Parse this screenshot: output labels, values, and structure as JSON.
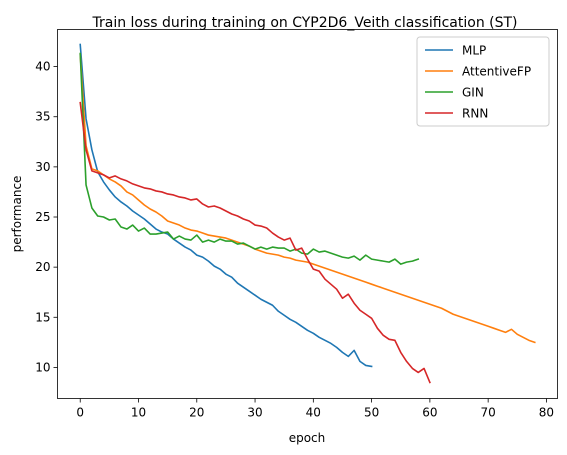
{
  "chart_data": {
    "type": "line",
    "title": "Train loss during training on CYP2D6_Veith classification (ST)",
    "xlabel": "epoch",
    "ylabel": "performance",
    "xlim": [
      -3.9,
      81.9
    ],
    "ylim": [
      6.9,
      43.7
    ],
    "xticks": [
      0,
      10,
      20,
      30,
      40,
      50,
      60,
      70,
      80
    ],
    "yticks": [
      10,
      15,
      20,
      25,
      30,
      35,
      40
    ],
    "grid": false,
    "legend": "top-right",
    "series": [
      {
        "name": "MLP",
        "color": "#1f77b4",
        "values": [
          42.2,
          34.8,
          31.7,
          29.5,
          28.5,
          27.7,
          27.0,
          26.5,
          26.1,
          25.6,
          25.2,
          24.8,
          24.3,
          23.8,
          23.5,
          23.3,
          22.8,
          22.4,
          22.0,
          21.7,
          21.2,
          21.0,
          20.6,
          20.1,
          19.8,
          19.3,
          19.0,
          18.4,
          18.0,
          17.6,
          17.2,
          16.8,
          16.5,
          16.2,
          15.6,
          15.2,
          14.8,
          14.5,
          14.1,
          13.7,
          13.4,
          13.0,
          12.7,
          12.4,
          12.0,
          11.5,
          11.1,
          11.7,
          10.6,
          10.2,
          10.1
        ]
      },
      {
        "name": "AttentiveFP",
        "color": "#ff7f0e",
        "values": [
          41.2,
          32.1,
          29.8,
          29.6,
          29.2,
          28.8,
          28.5,
          28.1,
          27.5,
          27.2,
          26.7,
          26.2,
          25.8,
          25.5,
          25.1,
          24.6,
          24.4,
          24.2,
          23.9,
          23.7,
          23.6,
          23.4,
          23.2,
          23.1,
          23.0,
          22.9,
          22.7,
          22.5,
          22.3,
          22.1,
          21.8,
          21.6,
          21.4,
          21.3,
          21.2,
          21.0,
          20.9,
          20.7,
          20.6,
          20.5,
          20.3,
          20.1,
          19.9,
          19.7,
          19.5,
          19.3,
          19.1,
          18.9,
          18.7,
          18.5,
          18.3,
          18.1,
          17.9,
          17.7,
          17.5,
          17.3,
          17.1,
          16.9,
          16.7,
          16.5,
          16.3,
          16.1,
          15.9,
          15.6,
          15.3,
          15.1,
          14.9,
          14.7,
          14.5,
          14.3,
          14.1,
          13.9,
          13.7,
          13.5,
          13.8,
          13.3,
          13.0,
          12.7,
          12.5
        ]
      },
      {
        "name": "GIN",
        "color": "#2ca02c",
        "values": [
          41.3,
          28.2,
          25.9,
          25.1,
          25.0,
          24.7,
          24.8,
          24.0,
          23.8,
          24.2,
          23.6,
          23.9,
          23.3,
          23.3,
          23.4,
          23.5,
          22.8,
          23.1,
          22.8,
          22.7,
          23.2,
          22.5,
          22.7,
          22.5,
          22.8,
          22.6,
          22.6,
          22.3,
          22.4,
          22.1,
          21.8,
          22.0,
          21.8,
          22.0,
          21.9,
          21.9,
          21.6,
          21.8,
          21.4,
          21.3,
          21.8,
          21.5,
          21.6,
          21.4,
          21.2,
          21.0,
          20.9,
          21.1,
          20.7,
          21.2,
          20.8,
          20.7,
          20.6,
          20.5,
          20.8,
          20.3,
          20.5,
          20.6,
          20.8
        ]
      },
      {
        "name": "RNN",
        "color": "#d62728",
        "values": [
          36.4,
          31.7,
          29.6,
          29.4,
          29.2,
          28.9,
          29.1,
          28.8,
          28.6,
          28.3,
          28.1,
          27.9,
          27.8,
          27.6,
          27.5,
          27.3,
          27.2,
          27.0,
          26.9,
          26.7,
          26.8,
          26.3,
          26.0,
          26.1,
          25.9,
          25.6,
          25.3,
          25.1,
          24.8,
          24.6,
          24.2,
          24.1,
          23.9,
          23.4,
          23.0,
          22.7,
          22.9,
          21.7,
          21.9,
          20.8,
          19.8,
          19.6,
          18.8,
          18.3,
          17.8,
          16.9,
          17.3,
          16.4,
          15.7,
          15.3,
          14.9,
          13.9,
          13.2,
          12.8,
          12.7,
          11.5,
          10.6,
          9.9,
          9.5,
          9.9,
          8.5
        ]
      }
    ]
  }
}
